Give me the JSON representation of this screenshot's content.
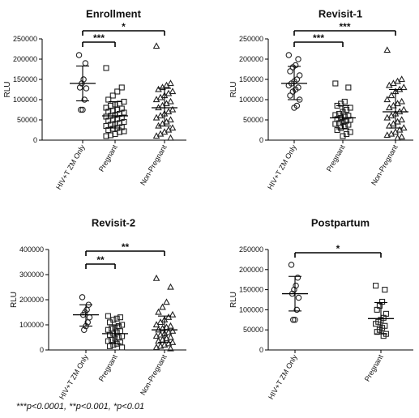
{
  "footnote": "***p<0.0001, **p<0.001, *p<0.01",
  "chart_data": [
    {
      "type": "scatter",
      "title": "Enrollment",
      "ylabel": "RLU",
      "ylim": [
        0,
        250000
      ],
      "yticks": [
        0,
        50000,
        100000,
        150000,
        200000,
        250000
      ],
      "categories": [
        "HIV+T ZM Only",
        "Pregnant",
        "Non-Pregnant"
      ],
      "groups": [
        {
          "name": "HIV+T ZM Only",
          "marker": "circle",
          "mean": 140000,
          "sd_low": 97000,
          "sd_high": 183000,
          "values": [
            210000,
            190000,
            150000,
            140000,
            130000,
            128000,
            100000,
            75000,
            75000
          ]
        },
        {
          "name": "Pregnant",
          "marker": "square",
          "mean": 60000,
          "sd_low": 30000,
          "sd_high": 95000,
          "values": [
            178000,
            130000,
            120000,
            110000,
            100000,
            95000,
            90000,
            88000,
            85000,
            80000,
            78000,
            75000,
            72000,
            70000,
            68000,
            65000,
            62000,
            60000,
            58000,
            55000,
            52000,
            50000,
            48000,
            45000,
            42000,
            40000,
            38000,
            35000,
            32000,
            30000,
            28000,
            25000,
            22000,
            20000,
            15000,
            12000,
            10000
          ]
        },
        {
          "name": "Non-Pregnant",
          "marker": "triangle",
          "mean": 80000,
          "sd_low": 35000,
          "sd_high": 128000,
          "values": [
            232000,
            140000,
            135000,
            130000,
            125000,
            120000,
            115000,
            110000,
            105000,
            100000,
            95000,
            90000,
            85000,
            80000,
            75000,
            70000,
            65000,
            60000,
            55000,
            50000,
            45000,
            40000,
            35000,
            30000,
            25000,
            20000,
            15000,
            10000,
            5000
          ]
        }
      ],
      "brackets": [
        {
          "from": 0,
          "to": 1,
          "label": "***"
        },
        {
          "from": 0,
          "to": 2,
          "label": "*"
        }
      ]
    },
    {
      "type": "scatter",
      "title": "Revisit-1",
      "ylabel": "RLU",
      "ylim": [
        0,
        250000
      ],
      "yticks": [
        0,
        50000,
        100000,
        150000,
        200000,
        250000
      ],
      "categories": [
        "HIV+T ZM Only",
        "Pregnant",
        "Non-Pregnant"
      ],
      "groups": [
        {
          "name": "HIV+T ZM Only",
          "marker": "circle",
          "mean": 140000,
          "sd_low": 100000,
          "sd_high": 182000,
          "values": [
            210000,
            200000,
            185000,
            180000,
            170000,
            160000,
            150000,
            145000,
            140000,
            135000,
            130000,
            125000,
            120000,
            110000,
            100000,
            85000,
            80000
          ]
        },
        {
          "name": "Pregnant",
          "marker": "square",
          "mean": 55000,
          "sd_low": 28000,
          "sd_high": 85000,
          "values": [
            140000,
            130000,
            95000,
            90000,
            85000,
            80000,
            75000,
            70000,
            65000,
            62000,
            60000,
            58000,
            55000,
            52000,
            50000,
            48000,
            45000,
            42000,
            40000,
            38000,
            35000,
            30000,
            25000,
            20000,
            15000,
            10000
          ]
        },
        {
          "name": "Non-Pregnant",
          "marker": "triangle",
          "mean": 70000,
          "sd_low": 30000,
          "sd_high": 125000,
          "values": [
            222000,
            150000,
            145000,
            140000,
            135000,
            130000,
            125000,
            120000,
            110000,
            100000,
            95000,
            90000,
            85000,
            80000,
            75000,
            70000,
            65000,
            60000,
            55000,
            50000,
            45000,
            40000,
            35000,
            30000,
            25000,
            20000,
            15000,
            12000,
            8000,
            5000
          ]
        }
      ],
      "brackets": [
        {
          "from": 0,
          "to": 1,
          "label": "***"
        },
        {
          "from": 0,
          "to": 2,
          "label": "***"
        }
      ]
    },
    {
      "type": "scatter",
      "title": "Revisit-2",
      "ylabel": "RLU",
      "ylim": [
        0,
        400000
      ],
      "yticks": [
        0,
        100000,
        200000,
        300000,
        400000
      ],
      "categories": [
        "HIV+T ZM Only",
        "Pregnant",
        "Non-Pregnant"
      ],
      "groups": [
        {
          "name": "HIV+T ZM Only",
          "marker": "circle",
          "mean": 140000,
          "sd_low": 95000,
          "sd_high": 180000,
          "values": [
            210000,
            180000,
            160000,
            150000,
            140000,
            130000,
            110000,
            95000,
            80000
          ]
        },
        {
          "name": "Pregnant",
          "marker": "square",
          "mean": 65000,
          "sd_low": 25000,
          "sd_high": 100000,
          "values": [
            135000,
            130000,
            125000,
            120000,
            110000,
            100000,
            95000,
            90000,
            85000,
            80000,
            75000,
            70000,
            65000,
            60000,
            55000,
            50000,
            45000,
            40000,
            35000,
            30000,
            25000,
            20000,
            15000,
            10000
          ]
        },
        {
          "name": "Non-Pregnant",
          "marker": "triangle",
          "mean": 80000,
          "sd_low": 30000,
          "sd_high": 135000,
          "values": [
            285000,
            250000,
            190000,
            170000,
            150000,
            140000,
            130000,
            120000,
            110000,
            100000,
            95000,
            90000,
            85000,
            80000,
            75000,
            70000,
            65000,
            60000,
            55000,
            50000,
            45000,
            40000,
            35000,
            30000,
            25000,
            20000,
            15000,
            10000,
            5000
          ]
        }
      ],
      "brackets": [
        {
          "from": 0,
          "to": 1,
          "label": "**"
        },
        {
          "from": 0,
          "to": 2,
          "label": "**"
        }
      ]
    },
    {
      "type": "scatter",
      "title": "Postpartum",
      "ylabel": "RLU",
      "ylim": [
        0,
        250000
      ],
      "yticks": [
        0,
        50000,
        100000,
        150000,
        200000,
        250000
      ],
      "categories": [
        "HIV+T ZM Only",
        "Pregnant"
      ],
      "groups": [
        {
          "name": "HIV+T ZM Only",
          "marker": "circle",
          "mean": 140000,
          "sd_low": 97000,
          "sd_high": 183000,
          "values": [
            212000,
            180000,
            160000,
            150000,
            140000,
            130000,
            100000,
            75000,
            75000
          ]
        },
        {
          "name": "Pregnant",
          "marker": "square",
          "mean": 78000,
          "sd_low": 40000,
          "sd_high": 118000,
          "values": [
            160000,
            150000,
            120000,
            110000,
            100000,
            90000,
            80000,
            75000,
            70000,
            65000,
            60000,
            55000,
            50000,
            45000,
            40000,
            35000
          ]
        }
      ],
      "brackets": [
        {
          "from": 0,
          "to": 1,
          "label": "*"
        }
      ]
    }
  ]
}
